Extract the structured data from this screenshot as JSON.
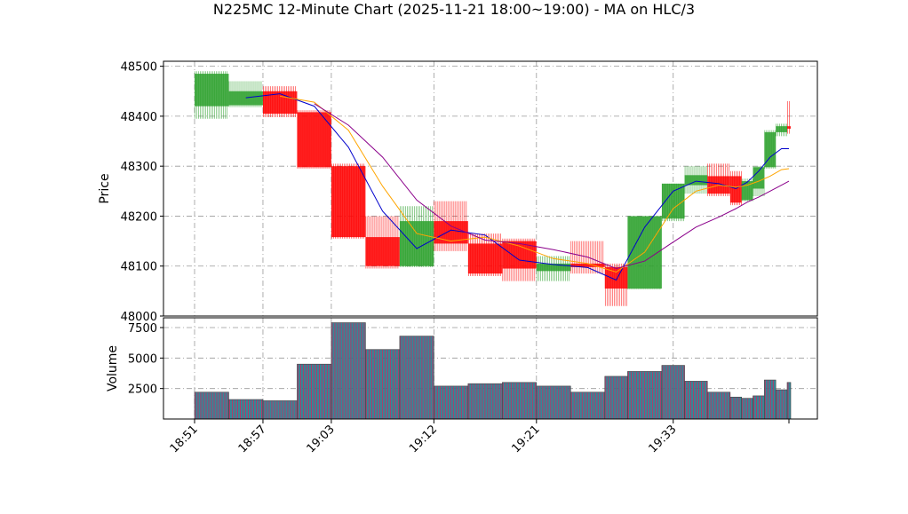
{
  "colors": {
    "up": "#2ca02c",
    "down": "#ff0000",
    "ma1": "#0000cc",
    "ma2": "#ffa500",
    "ma3": "#8b008b",
    "vol_a": "#1f7a8c",
    "vol_b": "#b03a6a",
    "grid": "#999999"
  },
  "chart_data": {
    "type": "candlestick",
    "title": "N225MC 12-Minute Chart (2025-11-21 18:00~19:00) - MA on HLC/3",
    "price_axis": {
      "label": "Price",
      "ylim": [
        48000,
        48510
      ],
      "ticks": [
        48000,
        48100,
        48200,
        48300,
        48400,
        48500
      ]
    },
    "volume_axis": {
      "label": "Volume",
      "ylim": [
        0,
        8300
      ],
      "ticks": [
        2500,
        5000,
        7500
      ],
      "tick_labels": [
        "2500",
        "5000",
        "7500"
      ]
    },
    "x_axis": {
      "ticks": [
        "18:51",
        "18:57",
        "19:03",
        "19:12",
        "19:21",
        "19:33"
      ]
    },
    "grid": true,
    "candles": [
      {
        "t": "18:51",
        "open": 48420,
        "high": 48490,
        "low": 48395,
        "close": 48485,
        "volume": 2200
      },
      {
        "t": "18:54",
        "open": 48422,
        "high": 48470,
        "low": 48418,
        "close": 48450,
        "volume": 1600
      },
      {
        "t": "18:57",
        "open": 48450,
        "high": 48460,
        "low": 48398,
        "close": 48405,
        "volume": 1500
      },
      {
        "t": "19:00",
        "open": 48408,
        "high": 48412,
        "low": 48295,
        "close": 48298,
        "volume": 4500
      },
      {
        "t": "19:03",
        "open": 48300,
        "high": 48305,
        "low": 48155,
        "close": 48158,
        "volume": 7900
      },
      {
        "t": "19:06",
        "open": 48158,
        "high": 48200,
        "low": 48095,
        "close": 48100,
        "volume": 5700
      },
      {
        "t": "19:09",
        "open": 48100,
        "high": 48220,
        "low": 48098,
        "close": 48190,
        "volume": 6800
      },
      {
        "t": "19:12",
        "open": 48190,
        "high": 48230,
        "low": 48130,
        "close": 48145,
        "volume": 2700
      },
      {
        "t": "19:15",
        "open": 48145,
        "high": 48165,
        "low": 48080,
        "close": 48085,
        "volume": 2900
      },
      {
        "t": "19:18",
        "open": 48150,
        "high": 48155,
        "low": 48070,
        "close": 48095,
        "volume": 3000
      },
      {
        "t": "19:21",
        "open": 48090,
        "high": 48120,
        "low": 48070,
        "close": 48105,
        "volume": 2700
      },
      {
        "t": "19:24",
        "open": 48105,
        "high": 48150,
        "low": 48085,
        "close": 48098,
        "volume": 2200
      },
      {
        "t": "19:27",
        "open": 48098,
        "high": 48105,
        "low": 48020,
        "close": 48055,
        "volume": 3500
      },
      {
        "t": "19:29",
        "open": 48055,
        "high": 48200,
        "low": 48053,
        "close": 48200,
        "volume": 3900
      },
      {
        "t": "19:32",
        "open": 48195,
        "high": 48265,
        "low": 48190,
        "close": 48265,
        "volume": 4400
      },
      {
        "t": "19:34",
        "open": 48262,
        "high": 48300,
        "low": 48245,
        "close": 48282,
        "volume": 3100
      },
      {
        "t": "19:36",
        "open": 48280,
        "high": 48305,
        "low": 48240,
        "close": 48245,
        "volume": 2200
      },
      {
        "t": "19:38",
        "open": 48280,
        "high": 48290,
        "low": 48222,
        "close": 48227,
        "volume": 1800
      },
      {
        "t": "19:39",
        "open": 48232,
        "high": 48275,
        "low": 48230,
        "close": 48270,
        "volume": 1700
      },
      {
        "t": "19:40",
        "open": 48255,
        "high": 48300,
        "low": 48240,
        "close": 48298,
        "volume": 1900
      },
      {
        "t": "19:41",
        "open": 48298,
        "high": 48372,
        "low": 48295,
        "close": 48368,
        "volume": 3200
      },
      {
        "t": "19:42",
        "open": 48368,
        "high": 48385,
        "low": 48360,
        "close": 48380,
        "volume": 2400
      },
      {
        "t": "19:43",
        "open": 48380,
        "high": 48430,
        "low": 48365,
        "close": 48375,
        "volume": 3000
      }
    ],
    "ma_series": [
      {
        "color_key": "ma1",
        "values": [
          null,
          48437,
          48445,
          48420,
          48338,
          48210,
          48135,
          48172,
          48162,
          48112,
          48103,
          48097,
          48072,
          48178,
          48250,
          48270,
          48265,
          48255,
          48268,
          48290,
          48318,
          48335,
          48335
        ]
      },
      {
        "color_key": "ma2",
        "values": [
          null,
          null,
          48440,
          48428,
          48372,
          48260,
          48165,
          48150,
          48158,
          48140,
          48115,
          48105,
          48088,
          48128,
          48215,
          48250,
          48262,
          48258,
          48262,
          48270,
          48280,
          48293,
          48295
        ]
      },
      {
        "color_key": "ma3",
        "values": [
          null,
          null,
          null,
          48425,
          48382,
          48318,
          48232,
          48180,
          48152,
          48145,
          48133,
          48118,
          48095,
          48110,
          48148,
          48178,
          48198,
          48215,
          48228,
          48238,
          48250,
          48262,
          48270
        ]
      }
    ]
  }
}
